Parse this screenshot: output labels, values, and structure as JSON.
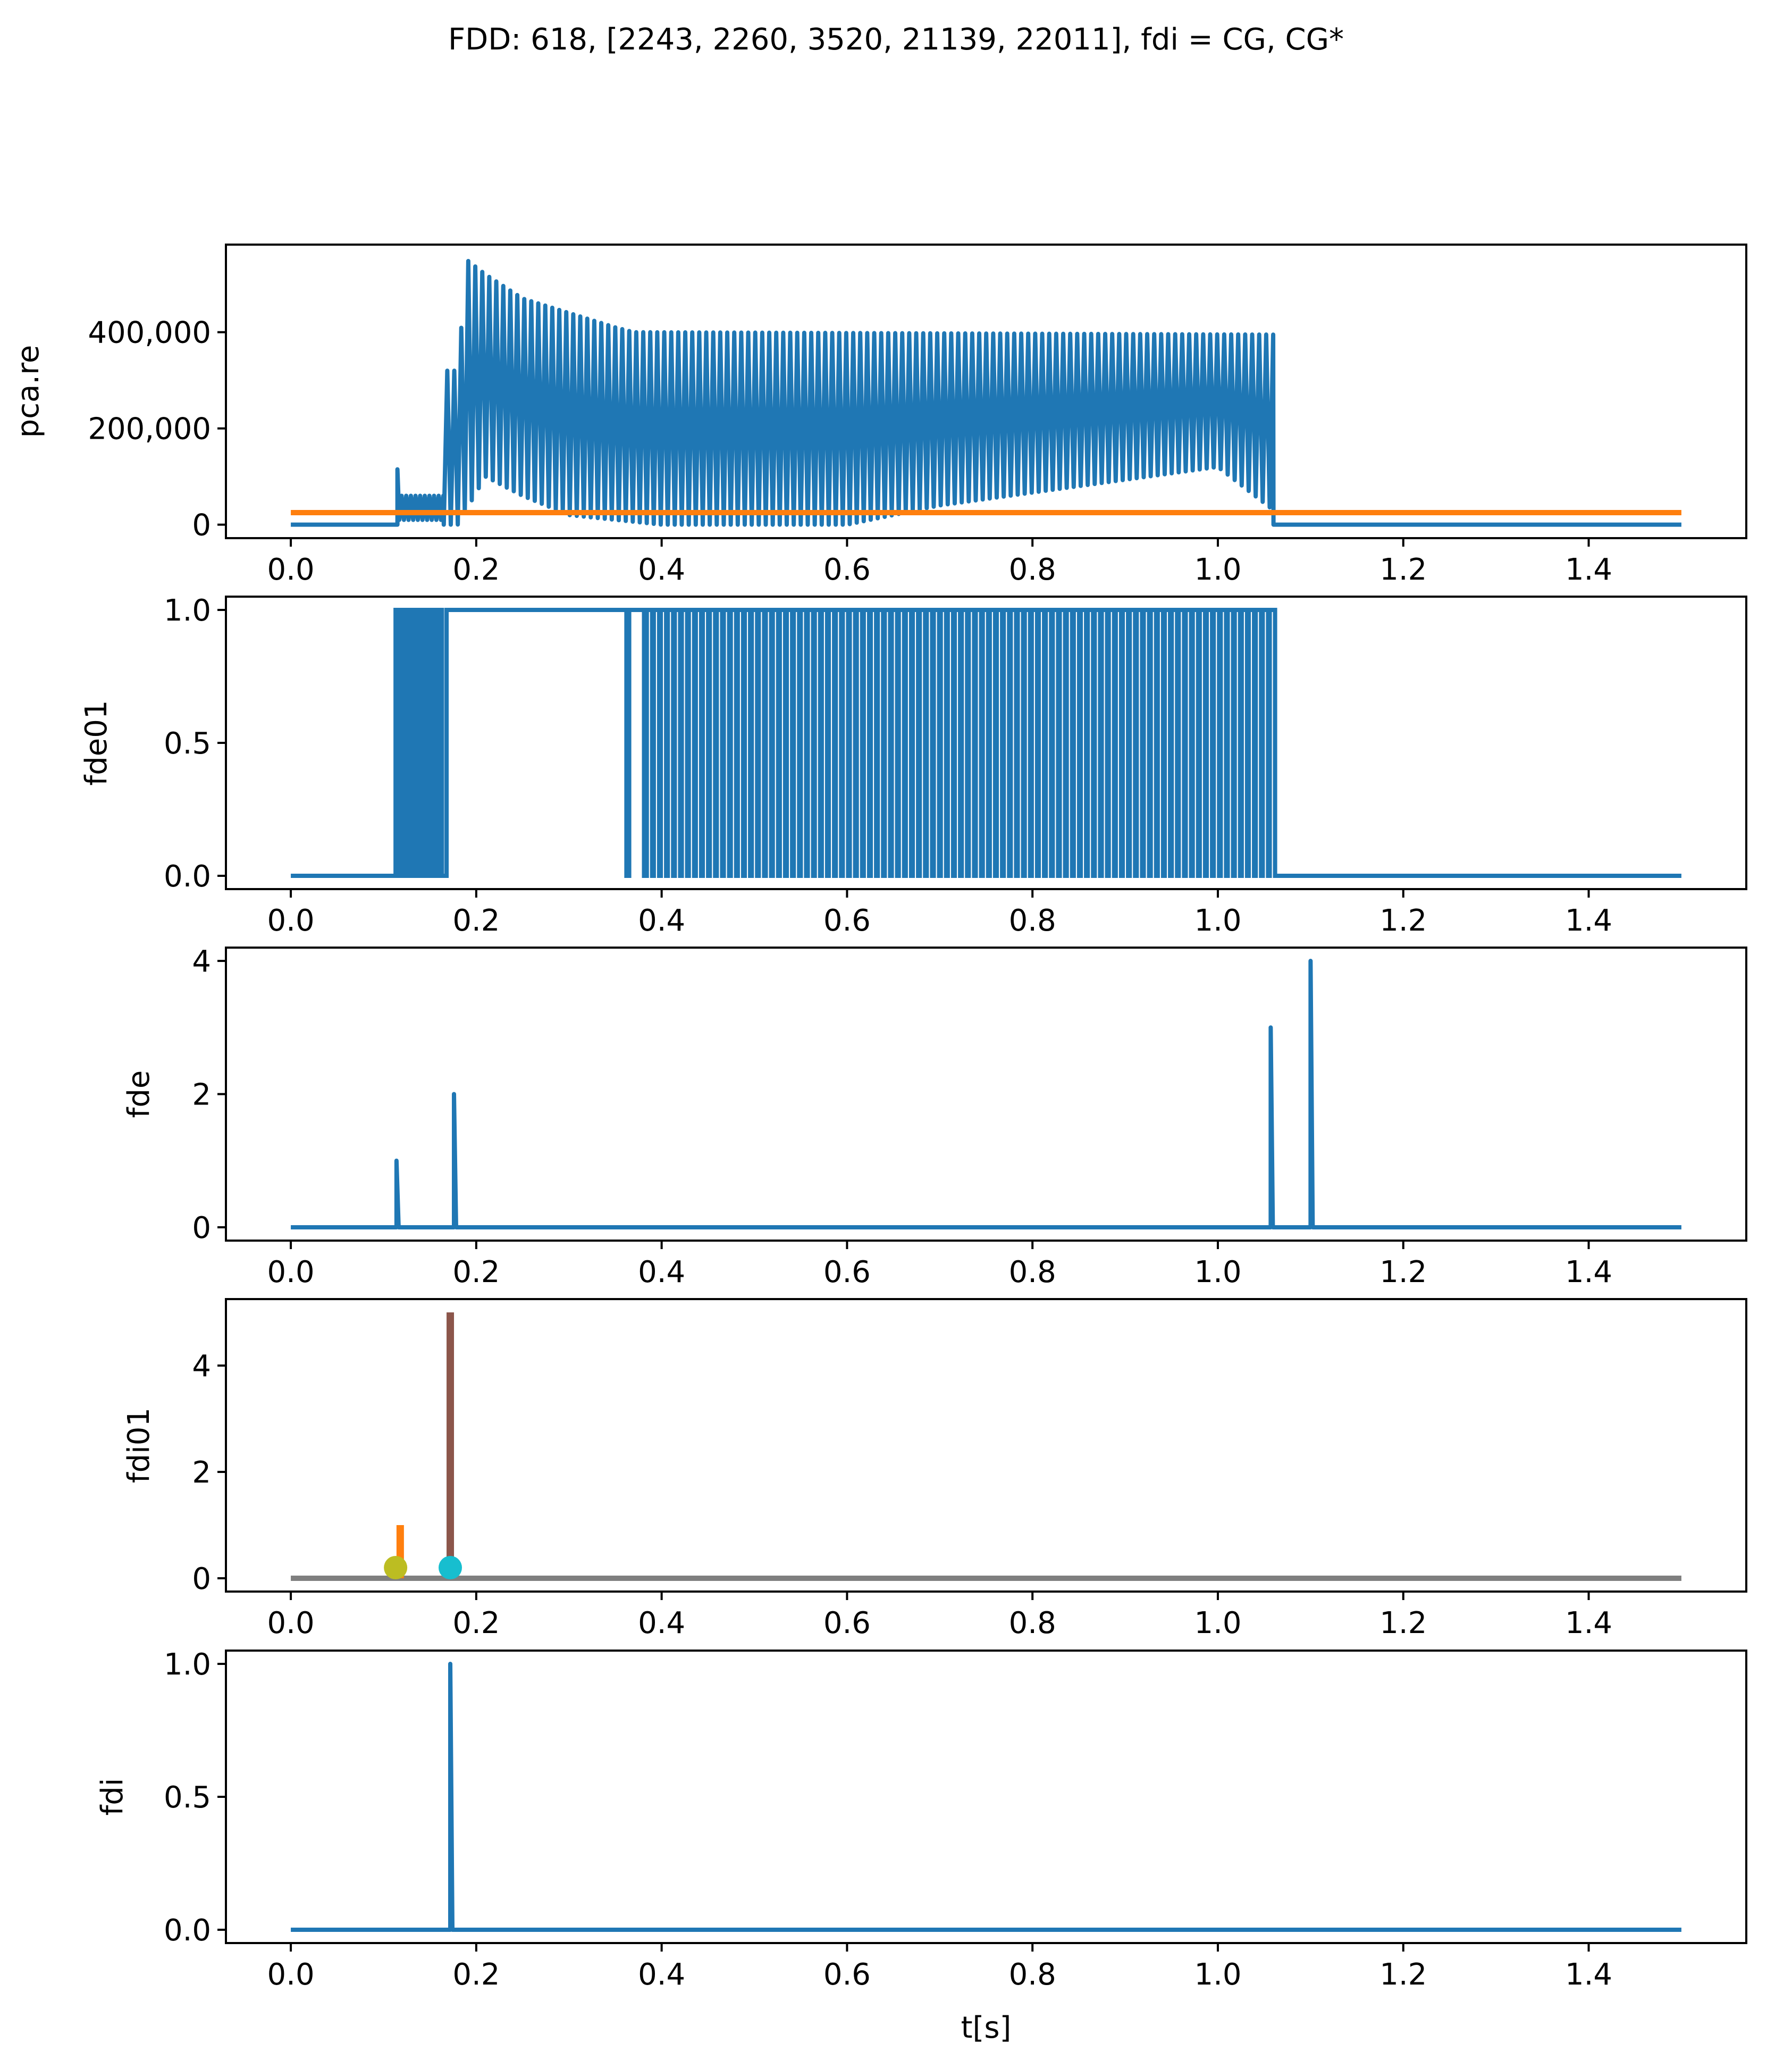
{
  "figure": {
    "title": "FDD: 618, [2243, 2260, 3520, 21139, 22011], fdi = CG, CG*"
  },
  "colors": {
    "tab_blue": "#1f77b4",
    "tab_orange": "#ff7f0e",
    "tab_brown": "#8c564b",
    "tab_gray": "#7f7f7f",
    "tab_olive": "#bcbd22",
    "tab_cyan": "#17becf",
    "axis": "#000000"
  },
  "chart_data": [
    {
      "type": "line",
      "ylabel": "pca.re",
      "xlabel": "",
      "xlim": [
        -0.07,
        1.57
      ],
      "ylim": [
        -28000,
        582000
      ],
      "xticks": [
        "0.0",
        "0.2",
        "0.4",
        "0.6",
        "0.8",
        "1.0",
        "1.2",
        "1.4"
      ],
      "yticks": [
        {
          "v": 0,
          "label": "0"
        },
        {
          "v": 200000,
          "label": "200,000"
        },
        {
          "v": 400000,
          "label": "400,000"
        }
      ],
      "series": [
        {
          "name": "pca.re",
          "kind": "oscillation",
          "color": "tab_blue",
          "baseline": [
            [
              0.0,
              0
            ],
            [
              0.115,
              0
            ]
          ],
          "noise_segment": {
            "start": 0.115,
            "end": 0.165,
            "low": 10000,
            "high": 60000,
            "spike": [
              0.115,
              115000
            ]
          },
          "envelope": {
            "start": 0.165,
            "end": 1.06,
            "step": 0.00755,
            "peaks": [
              [
                0.18,
                320000
              ],
              [
                0.19,
                550000
              ],
              [
                0.21,
                520000
              ],
              [
                0.25,
                470000
              ],
              [
                0.3,
                440000
              ],
              [
                0.35,
                410000
              ],
              [
                0.37,
                400000
              ],
              [
                1.06,
                395000
              ]
            ],
            "troughs": [
              [
                0.18,
                0
              ],
              [
                0.21,
                100000
              ],
              [
                0.25,
                60000
              ],
              [
                0.3,
                20000
              ],
              [
                0.4,
                0
              ],
              [
                0.6,
                0
              ],
              [
                0.7,
                40000
              ],
              [
                1.0,
                120000
              ],
              [
                1.06,
                30000
              ]
            ]
          },
          "tail": [
            [
              1.06,
              0
            ],
            [
              1.5,
              0
            ]
          ]
        },
        {
          "name": "threshold",
          "kind": "constant",
          "color": "tab_orange",
          "x": [
            0.0,
            1.5
          ],
          "y": 25000
        }
      ]
    },
    {
      "type": "line",
      "ylabel": "fde01",
      "xlabel": "",
      "xlim": [
        -0.07,
        1.57
      ],
      "ylim": [
        -0.05,
        1.05
      ],
      "xticks": [
        "0.0",
        "0.2",
        "0.4",
        "0.6",
        "0.8",
        "1.0",
        "1.2",
        "1.4"
      ],
      "yticks": [
        {
          "v": 0,
          "label": "0.0"
        },
        {
          "v": 0.5,
          "label": "0.5"
        },
        {
          "v": 1,
          "label": "1.0"
        }
      ],
      "series": [
        {
          "name": "fde01",
          "kind": "binary",
          "color": "tab_blue",
          "base": 0,
          "high": 1,
          "high_blocks": [
            [
              0.113,
              0.114
            ],
            [
              0.116,
              0.119
            ],
            [
              0.121,
              0.124
            ],
            [
              0.126,
              0.129
            ],
            [
              0.131,
              0.134
            ],
            [
              0.136,
              0.139
            ],
            [
              0.141,
              0.144
            ],
            [
              0.146,
              0.149
            ],
            [
              0.151,
              0.154
            ],
            [
              0.156,
              0.159
            ],
            [
              0.161,
              0.163
            ],
            [
              0.168,
              0.362
            ],
            [
              0.365,
              0.381
            ]
          ],
          "pulse_train": {
            "start": 0.384,
            "end": 1.062,
            "period": 0.00755,
            "low_width": 0.0018
          }
        }
      ]
    },
    {
      "type": "line",
      "ylabel": "fde",
      "xlabel": "",
      "xlim": [
        -0.07,
        1.57
      ],
      "ylim": [
        -0.2,
        4.2
      ],
      "xticks": [
        "0.0",
        "0.2",
        "0.4",
        "0.6",
        "0.8",
        "1.0",
        "1.2",
        "1.4"
      ],
      "yticks": [
        {
          "v": 0,
          "label": "0"
        },
        {
          "v": 2,
          "label": "2"
        },
        {
          "v": 4,
          "label": "4"
        }
      ],
      "series": [
        {
          "name": "fde",
          "kind": "spikes",
          "color": "tab_blue",
          "x": [
            0.0,
            1.5
          ],
          "base": 0,
          "spikes": [
            [
              0.114,
              1
            ],
            [
              0.176,
              2
            ],
            [
              1.057,
              3
            ],
            [
              1.1,
              4
            ]
          ]
        }
      ]
    },
    {
      "type": "line",
      "ylabel": "fdi01",
      "xlabel": "",
      "xlim": [
        -0.07,
        1.57
      ],
      "ylim": [
        -0.25,
        5.25
      ],
      "xticks": [
        "0.0",
        "0.2",
        "0.4",
        "0.6",
        "0.8",
        "1.0",
        "1.2",
        "1.4"
      ],
      "yticks": [
        {
          "v": 0,
          "label": "0"
        },
        {
          "v": 2,
          "label": "2"
        },
        {
          "v": 4,
          "label": "4"
        }
      ],
      "series": [
        {
          "name": "zero line",
          "kind": "constant",
          "color": "tab_gray",
          "x": [
            0.0,
            1.5
          ],
          "y": 0
        },
        {
          "name": "fdi01 orange",
          "kind": "bar_line",
          "color": "tab_orange",
          "x": 0.118,
          "y": [
            0,
            1
          ]
        },
        {
          "name": "fdi01 brown",
          "kind": "bar_line",
          "color": "tab_brown",
          "x": 0.172,
          "y": [
            0,
            5
          ]
        },
        {
          "name": "marker 1",
          "kind": "marker",
          "color": "tab_olive",
          "x": 0.113,
          "y": 0.2
        },
        {
          "name": "marker 2",
          "kind": "marker",
          "color": "tab_cyan",
          "x": 0.172,
          "y": 0.2
        }
      ]
    },
    {
      "type": "line",
      "ylabel": "fdi",
      "xlabel": "t[s]",
      "xlim": [
        -0.07,
        1.57
      ],
      "ylim": [
        -0.05,
        1.05
      ],
      "xticks": [
        "0.0",
        "0.2",
        "0.4",
        "0.6",
        "0.8",
        "1.0",
        "1.2",
        "1.4"
      ],
      "yticks": [
        {
          "v": 0,
          "label": "0.0"
        },
        {
          "v": 0.5,
          "label": "0.5"
        },
        {
          "v": 1,
          "label": "1.0"
        }
      ],
      "series": [
        {
          "name": "fdi",
          "kind": "spikes",
          "color": "tab_blue",
          "x": [
            0.0,
            1.5
          ],
          "base": 0,
          "spikes": [
            [
              0.172,
              1
            ]
          ]
        }
      ]
    }
  ]
}
